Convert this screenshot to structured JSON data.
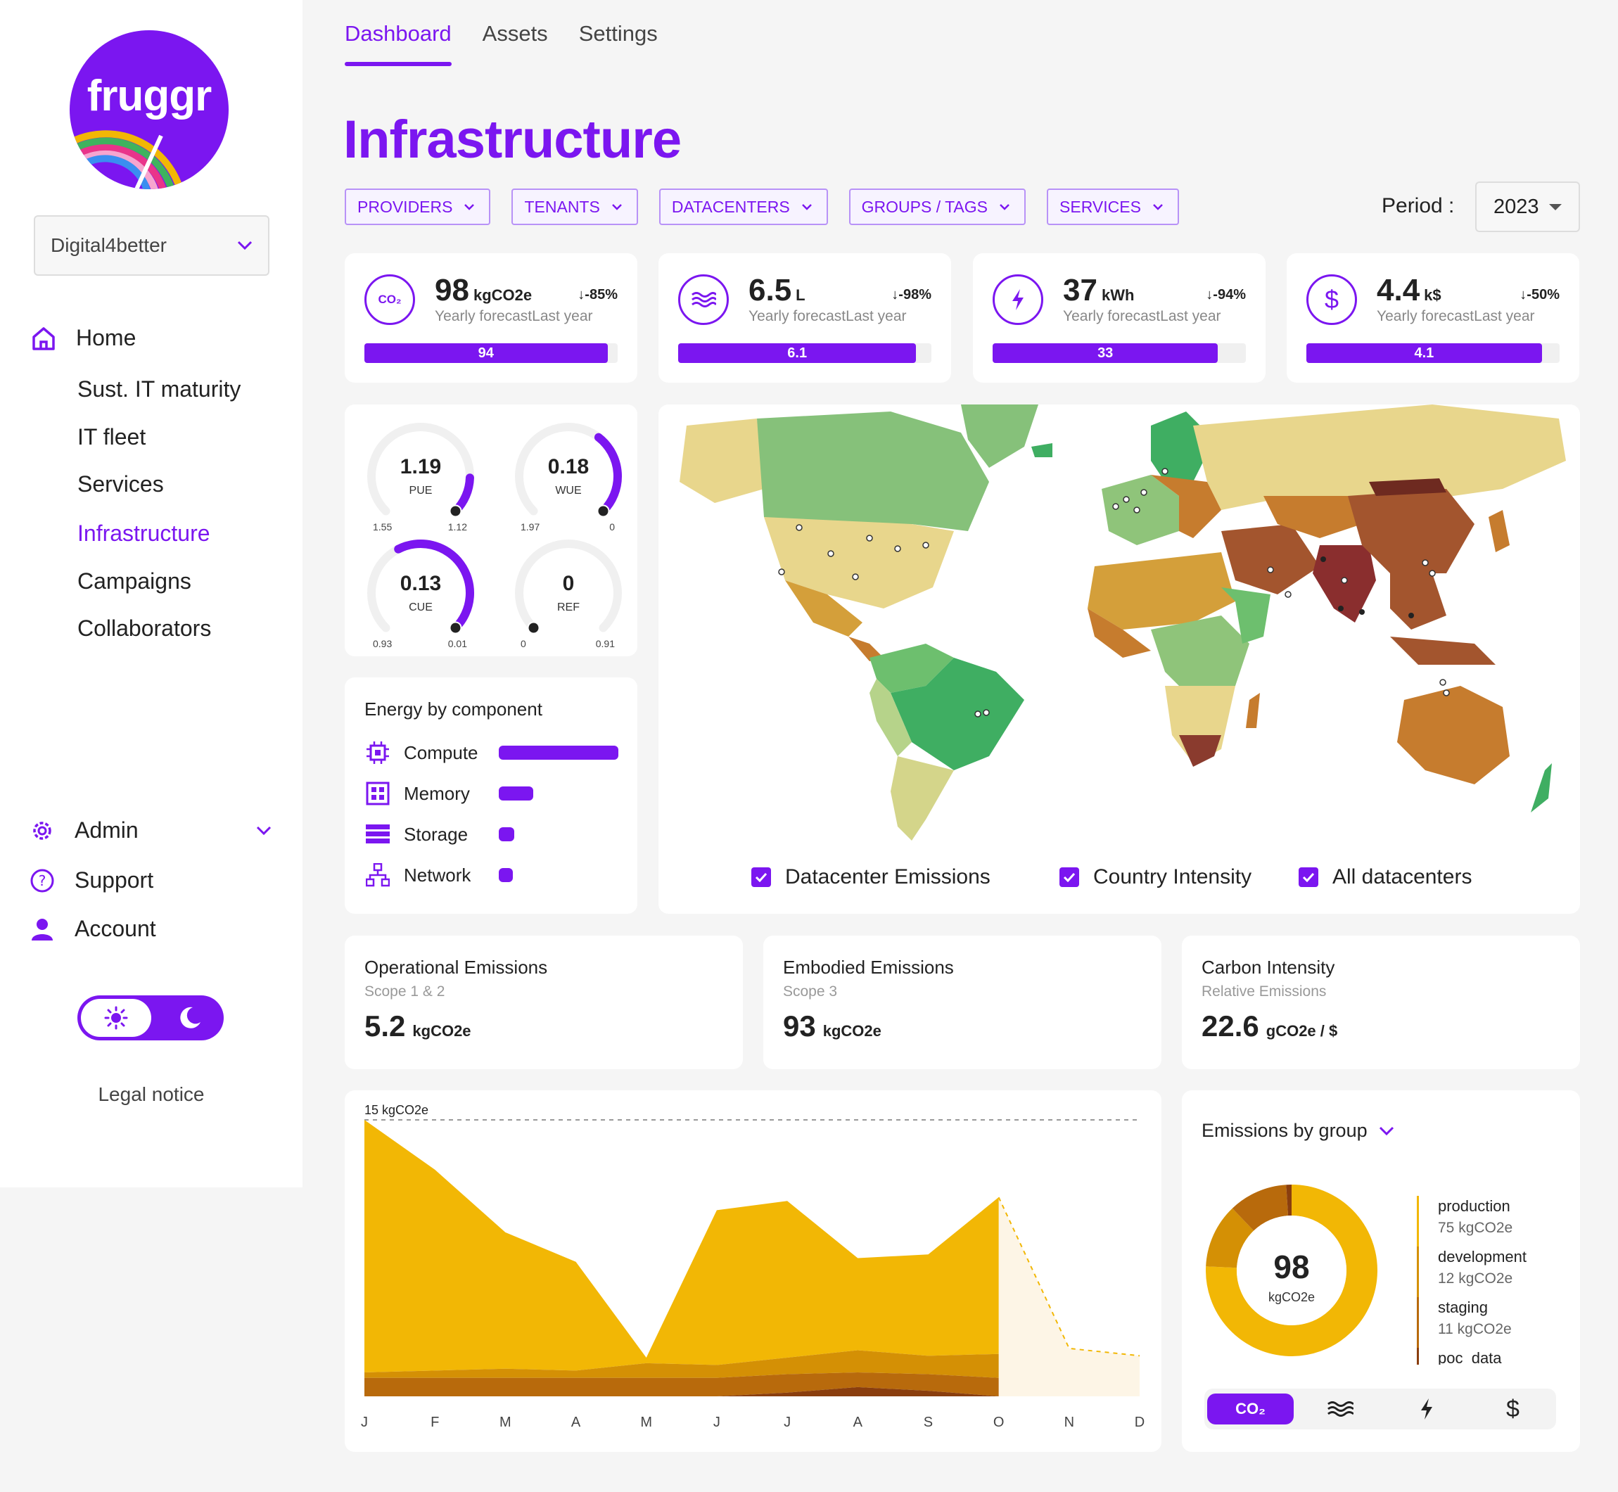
{
  "sidebar": {
    "logo_text": "fruggr",
    "org_select": "Digital4better",
    "nav": [
      {
        "label": "Home",
        "icon": "home-icon"
      },
      {
        "label": "Sust. IT maturity"
      },
      {
        "label": "IT fleet"
      },
      {
        "label": "Services"
      },
      {
        "label": "Infrastructure",
        "active": true
      },
      {
        "label": "Campaigns"
      },
      {
        "label": "Collaborators"
      }
    ],
    "bottom_nav": [
      {
        "label": "Admin",
        "icon": "gear-icon"
      },
      {
        "label": "Support",
        "icon": "help-icon"
      },
      {
        "label": "Account",
        "icon": "user-icon"
      }
    ],
    "legal": "Legal notice"
  },
  "tabs": [
    "Dashboard",
    "Assets",
    "Settings"
  ],
  "page_title": "Infrastructure",
  "filters": [
    "PROVIDERS",
    "TENANTS",
    "DATACENTERS",
    "GROUPS / TAGS",
    "SERVICES"
  ],
  "period": {
    "label": "Period :",
    "value": "2023"
  },
  "kpis": [
    {
      "icon": "co2-icon",
      "icon_text": "CO₂",
      "value": "98",
      "unit": "kgCO2e",
      "delta": "-85%",
      "forecast_label": "Yearly forecast",
      "last_label": "Last year",
      "bar_value": "94",
      "fill": 0.96
    },
    {
      "icon": "water-icon",
      "value": "6.5",
      "unit": "L",
      "delta": "-98%",
      "forecast_label": "Yearly forecast",
      "last_label": "Last year",
      "bar_value": "6.1",
      "fill": 0.94
    },
    {
      "icon": "energy-icon",
      "value": "37",
      "unit": "kWh",
      "delta": "-94%",
      "forecast_label": "Yearly forecast",
      "last_label": "Last year",
      "bar_value": "33",
      "fill": 0.89
    },
    {
      "icon": "dollar-icon",
      "value": "4.4",
      "unit": "k$",
      "delta": "-50%",
      "forecast_label": "Yearly forecast",
      "last_label": "Last year",
      "bar_value": "4.1",
      "fill": 0.93
    }
  ],
  "gauges": [
    {
      "value": "1.19",
      "name": "PUE",
      "min": "1.55",
      "max": "1.12",
      "level": 0.16
    },
    {
      "value": "0.18",
      "name": "WUE",
      "min": "1.97",
      "max": "0",
      "level": 0.36
    },
    {
      "value": "0.13",
      "name": "CUE",
      "min": "0.93",
      "max": "0.01",
      "level": 0.6
    },
    {
      "value": "0",
      "name": "REF",
      "min": "0",
      "max": "0.91",
      "level": 0
    }
  ],
  "energy_by_component": {
    "title": "Energy by component",
    "items": [
      {
        "label": "Compute",
        "icon": "cpu-icon",
        "share": 1.0
      },
      {
        "label": "Memory",
        "icon": "memory-icon",
        "share": 0.29
      },
      {
        "label": "Storage",
        "icon": "storage-icon",
        "share": 0.13
      },
      {
        "label": "Network",
        "icon": "network-icon",
        "share": 0.1
      }
    ]
  },
  "map_legend": [
    "Datacenter Emissions",
    "Country Intensity",
    "All datacenters"
  ],
  "emissions": [
    {
      "title": "Operational Emissions",
      "sub": "Scope 1 & 2",
      "value": "5.2",
      "unit": "kgCO2e"
    },
    {
      "title": "Embodied Emissions",
      "sub": "Scope 3",
      "value": "93",
      "unit": "kgCO2e"
    },
    {
      "title": "Carbon Intensity",
      "sub": "Relative Emissions",
      "value": "22.6",
      "unit": "gCO2e / $"
    }
  ],
  "chart_data": {
    "type": "area",
    "title": "",
    "ymax_label": "15 kgCO2e",
    "ylim": [
      0,
      15
    ],
    "categories": [
      "J",
      "F",
      "M",
      "A",
      "M",
      "J",
      "J",
      "A",
      "S",
      "O",
      "N",
      "D"
    ],
    "series": [
      {
        "values": [
          0,
          0,
          0,
          0,
          0,
          0,
          0.2,
          0.5,
          0.3,
          0,
          null,
          null
        ],
        "color": "#8a3e0e"
      },
      {
        "values": [
          1.0,
          1.0,
          1.0,
          1.0,
          1.0,
          1.0,
          1.0,
          0.8,
          0.9,
          1.0,
          null,
          null
        ],
        "color": "#b86a0c"
      },
      {
        "values": [
          0.3,
          0.4,
          0.5,
          0.4,
          0.8,
          0.7,
          0.9,
          1.2,
          1.0,
          1.3,
          null,
          null
        ],
        "color": "#d49005"
      },
      {
        "values": [
          13.7,
          10.9,
          7.4,
          5.9,
          0.3,
          8.4,
          8.5,
          5.0,
          5.5,
          8.5,
          null,
          null
        ],
        "color": "#f2b705"
      }
    ],
    "forecast": {
      "values": [
        null,
        null,
        null,
        null,
        null,
        null,
        null,
        null,
        null,
        10.8,
        2.6,
        2.2
      ],
      "fill": "#fdf5e6"
    }
  },
  "emissions_by_group": {
    "title": "Emissions by group",
    "total": "98",
    "unit": "kgCO2e",
    "groups": [
      {
        "name": "production",
        "value": "75 kgCO2e",
        "amount": 75,
        "color": "#f2b705"
      },
      {
        "name": "development",
        "value": "12 kgCO2e",
        "amount": 12,
        "color": "#d49005"
      },
      {
        "name": "staging",
        "value": "11 kgCO2e",
        "amount": 11,
        "color": "#b86a0c"
      },
      {
        "name": "poc_data",
        "value": "",
        "amount": 1,
        "color": "#8a3e0e"
      }
    ],
    "metric_buttons": [
      "co2-icon",
      "water-icon",
      "energy-icon",
      "dollar-icon"
    ],
    "co2_label": "CO₂"
  }
}
